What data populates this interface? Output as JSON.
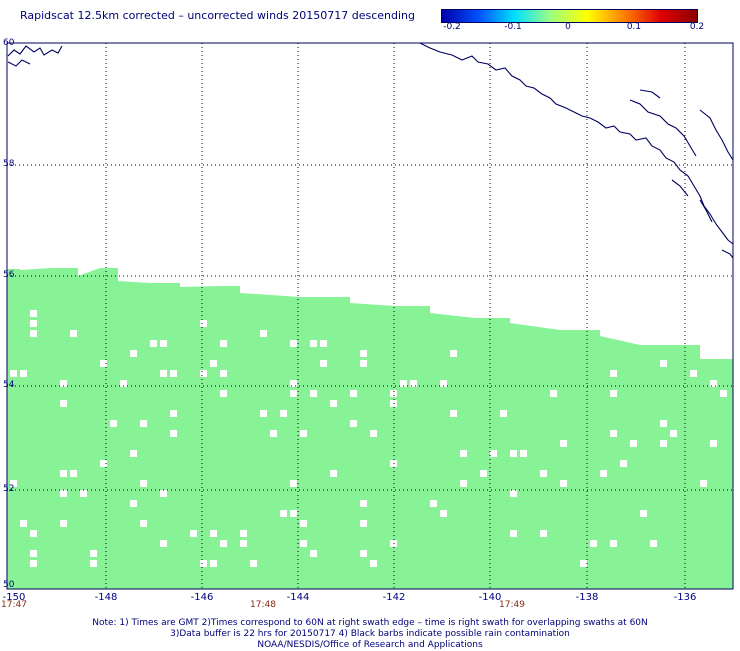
{
  "title": "Rapidscat 12.5km corrected – uncorrected winds 20150717 descending",
  "colorbar": {
    "ticks": [
      "-0.2",
      "-0.1",
      "0",
      "0.1",
      "0.2"
    ],
    "colors": [
      "#0000a8",
      "#0050ff",
      "#00e0ff",
      "#a0ff80",
      "#ffff00",
      "#ff8000",
      "#e00000",
      "#8a0000"
    ]
  },
  "map": {
    "lat_labels": [
      "60",
      "58",
      "56",
      "54",
      "52",
      "50"
    ],
    "lon_labels": [
      "-150",
      "-148",
      "-146",
      "-144",
      "-142",
      "-140",
      "-138",
      "-136"
    ],
    "time_labels": [
      "17:47",
      "17:48",
      "17:49"
    ],
    "lat_range": [
      50,
      60
    ],
    "lon_range": [
      -150,
      -135
    ],
    "swath_color": "#88f396",
    "coast_color": "#000060"
  },
  "notes": [
    "Note: 1) Times are GMT 2)Times correspond to 60N at right swath edge – time is right swath for overlapping swaths at 60N",
    "3)Data buffer is 22 hrs for 20150717 4) Black barbs indicate possible rain contamination",
    "NOAA/NESDIS/Office of Research and Applications"
  ]
}
